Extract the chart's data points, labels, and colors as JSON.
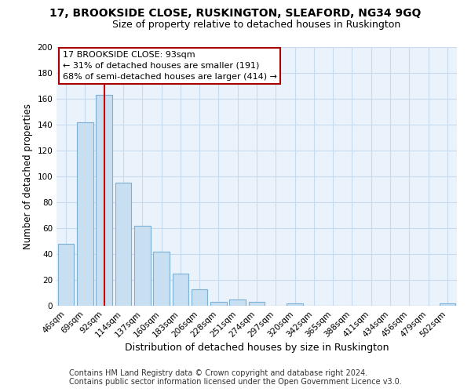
{
  "title": "17, BROOKSIDE CLOSE, RUSKINGTON, SLEAFORD, NG34 9GQ",
  "subtitle": "Size of property relative to detached houses in Ruskington",
  "xlabel": "Distribution of detached houses by size in Ruskington",
  "ylabel": "Number of detached properties",
  "bar_color": "#c8dff2",
  "bar_edge_color": "#7bafd4",
  "vline_color": "#cc0000",
  "vline_x": 2,
  "categories": [
    "46sqm",
    "69sqm",
    "92sqm",
    "114sqm",
    "137sqm",
    "160sqm",
    "183sqm",
    "206sqm",
    "228sqm",
    "251sqm",
    "274sqm",
    "297sqm",
    "320sqm",
    "342sqm",
    "365sqm",
    "388sqm",
    "411sqm",
    "434sqm",
    "456sqm",
    "479sqm",
    "502sqm"
  ],
  "values": [
    48,
    142,
    163,
    95,
    62,
    42,
    25,
    13,
    3,
    5,
    3,
    0,
    2,
    0,
    0,
    0,
    0,
    0,
    0,
    0,
    2
  ],
  "ylim": [
    0,
    200
  ],
  "yticks": [
    0,
    20,
    40,
    60,
    80,
    100,
    120,
    140,
    160,
    180,
    200
  ],
  "annotation_title": "17 BROOKSIDE CLOSE: 93sqm",
  "annotation_line1": "← 31% of detached houses are smaller (191)",
  "annotation_line2": "68% of semi-detached houses are larger (414) →",
  "annotation_box_color": "#ffffff",
  "annotation_box_edge": "#aa0000",
  "footer_line1": "Contains HM Land Registry data © Crown copyright and database right 2024.",
  "footer_line2": "Contains public sector information licensed under the Open Government Licence v3.0.",
  "title_fontsize": 10,
  "subtitle_fontsize": 9,
  "xlabel_fontsize": 9,
  "ylabel_fontsize": 8.5,
  "tick_fontsize": 7.5,
  "annotation_fontsize": 8,
  "footer_fontsize": 7,
  "background_color": "#ffffff",
  "grid_color": "#c8daf0",
  "grid_bg_color": "#eaf2fb"
}
